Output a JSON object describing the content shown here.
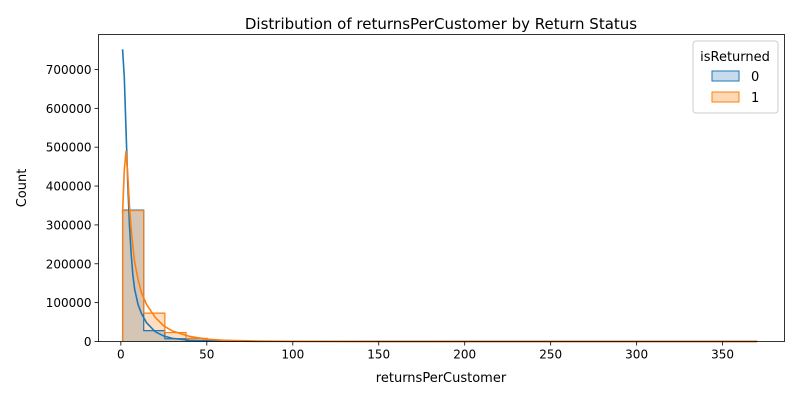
{
  "chart_data": {
    "type": "histogram",
    "title": "Distribution of returnsPerCustomer by Return Status",
    "xlabel": "returnsPerCustomer",
    "ylabel": "Count",
    "xlim": [
      -13,
      386
    ],
    "ylim": [
      0,
      790000
    ],
    "x_ticks": [
      0,
      50,
      100,
      150,
      200,
      250,
      300,
      350
    ],
    "y_ticks": [
      0,
      100000,
      200000,
      300000,
      400000,
      500000,
      600000,
      700000
    ],
    "bin_edges": [
      1,
      13.3,
      25.6,
      37.9,
      50.2,
      62.5,
      74.8,
      87.1,
      99.4,
      111.7,
      124,
      136.3,
      148.6,
      160.9,
      173.2,
      185.5,
      197.8,
      210.1,
      222.4,
      234.7,
      247,
      259.3,
      271.6,
      283.9,
      296.2,
      308.5,
      320.8,
      333.1,
      345.4,
      357.7,
      370
    ],
    "legend": {
      "title": "isReturned",
      "position": "top-right"
    },
    "series": [
      {
        "name": "0",
        "line_color": "#1f77b4",
        "fill_color": "#c6dcec",
        "bin_counts": [
          338000,
          28000,
          7000,
          2500,
          1200,
          600,
          400,
          300,
          200,
          150,
          120,
          100,
          90,
          80,
          70,
          60,
          50,
          45,
          40,
          35,
          30,
          28,
          25,
          22,
          20,
          18,
          16,
          14,
          12,
          10
        ],
        "kde": {
          "x": [
            1,
            2,
            3,
            4,
            5,
            6,
            7,
            8,
            10,
            12,
            15,
            20,
            25,
            30,
            40,
            50,
            60,
            80,
            100,
            150,
            200,
            250,
            300,
            370
          ],
          "y": [
            752000,
            680000,
            545000,
            410000,
            300000,
            225000,
            170000,
            135000,
            95000,
            72000,
            48000,
            25000,
            14000,
            8000,
            3500,
            1800,
            1000,
            500,
            300,
            150,
            100,
            80,
            60,
            40
          ]
        }
      },
      {
        "name": "1",
        "line_color": "#ff7f0e",
        "fill_color": "#ffd9b6",
        "bin_counts": [
          337000,
          73000,
          23000,
          8000,
          3500,
          1800,
          1000,
          600,
          400,
          300,
          220,
          170,
          140,
          120,
          100,
          80,
          70,
          60,
          50,
          45,
          40,
          35,
          30,
          27,
          24,
          21,
          18,
          15,
          12,
          10
        ],
        "kde": {
          "x": [
            1,
            2,
            3,
            4,
            5,
            6,
            7,
            8,
            10,
            12,
            15,
            20,
            25,
            30,
            40,
            50,
            60,
            80,
            100,
            150,
            200,
            250,
            300,
            370
          ],
          "y": [
            330000,
            440000,
            490000,
            430000,
            350000,
            290000,
            245000,
            205000,
            160000,
            125000,
            95000,
            62000,
            40000,
            27000,
            13000,
            6000,
            3000,
            1200,
            600,
            250,
            150,
            100,
            80,
            50
          ]
        }
      }
    ],
    "overlap_color": "#c2c1bc"
  }
}
